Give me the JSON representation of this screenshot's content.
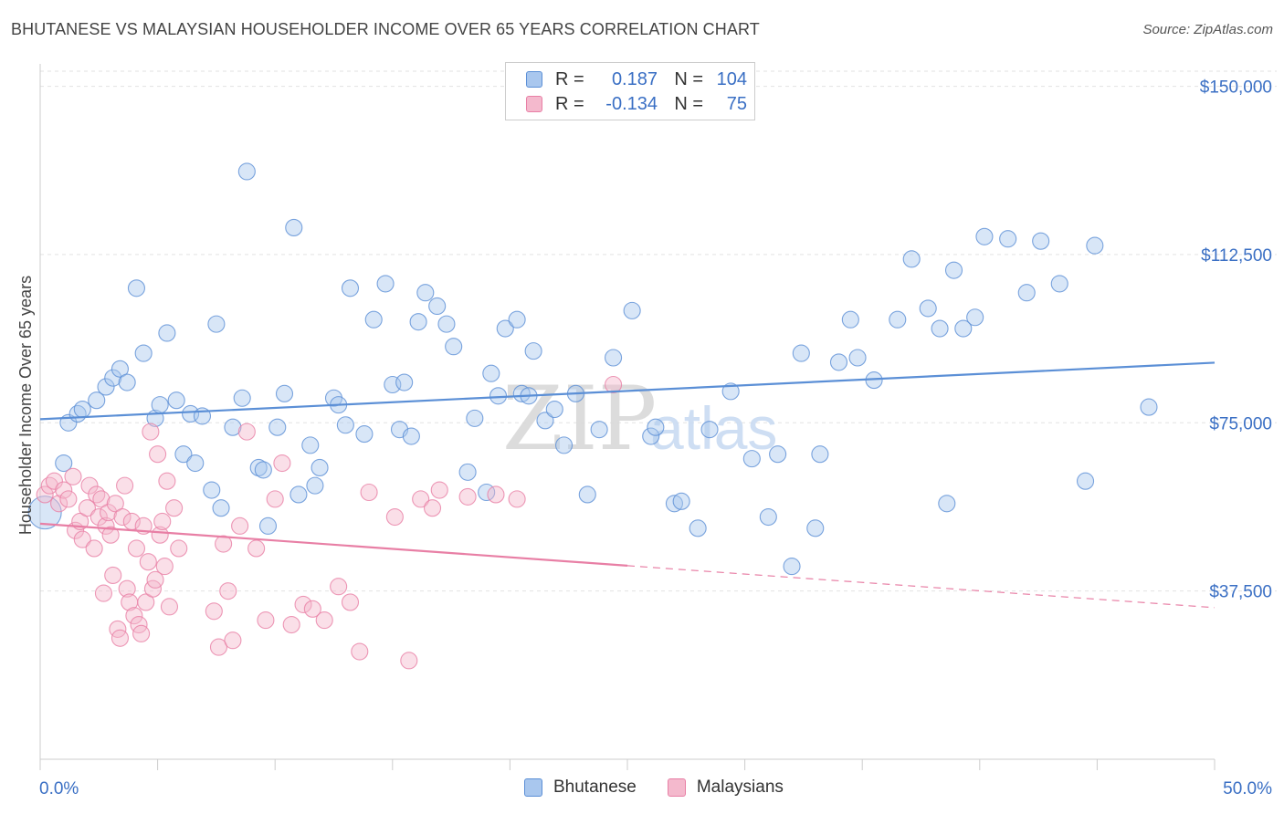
{
  "header": {
    "title": "BHUTANESE VS MALAYSIAN HOUSEHOLDER INCOME OVER 65 YEARS CORRELATION CHART",
    "source": "Source: ZipAtlas.com"
  },
  "watermark": {
    "zip": "ZIP",
    "atlas": "atlas"
  },
  "legend": {
    "rows": [
      {
        "r_label": "R =",
        "r_value": "0.187",
        "n_label": "N =",
        "n_value": "104",
        "color": "#5b8fd6"
      },
      {
        "r_label": "R =",
        "r_value": "-0.134",
        "n_label": "N =",
        "n_value": "75",
        "color": "#e87fa5"
      }
    ]
  },
  "bottom_legend": [
    "Bhutanese",
    "Malaysians"
  ],
  "chart_data": {
    "type": "scatter",
    "ylabel": "Householder Income Over 65 years",
    "x_min_label": "0.0%",
    "x_max_label": "50.0%",
    "xlim": [
      0,
      50
    ],
    "ylim": [
      0,
      155000
    ],
    "grid": true,
    "y_ticks": [
      {
        "value": 37500,
        "label": "$37,500"
      },
      {
        "value": 75000,
        "label": "$75,000"
      },
      {
        "value": 112500,
        "label": "$112,500"
      },
      {
        "value": 150000,
        "label": "$150,000"
      }
    ],
    "x_ticks": [
      0,
      5,
      10,
      15,
      20,
      25,
      30,
      35,
      40,
      45,
      50
    ],
    "series": [
      {
        "name": "Bhutanese",
        "color": "#5b8fd6",
        "fill": "#a9c7ee",
        "trend": {
          "x": [
            0,
            50
          ],
          "y": [
            75800,
            88400
          ],
          "dashed_from": null
        },
        "points": [
          [
            0.2,
            55000
          ],
          [
            1.0,
            66000
          ],
          [
            1.2,
            75000
          ],
          [
            1.6,
            77000
          ],
          [
            1.8,
            78000
          ],
          [
            2.4,
            80000
          ],
          [
            2.8,
            83000
          ],
          [
            3.1,
            85000
          ],
          [
            3.4,
            87000
          ],
          [
            3.7,
            84000
          ],
          [
            4.1,
            105000
          ],
          [
            4.4,
            90500
          ],
          [
            4.9,
            76000
          ],
          [
            5.1,
            79000
          ],
          [
            5.4,
            95000
          ],
          [
            5.8,
            80000
          ],
          [
            6.1,
            68000
          ],
          [
            6.4,
            77000
          ],
          [
            6.6,
            66000
          ],
          [
            6.9,
            76500
          ],
          [
            7.3,
            60000
          ],
          [
            7.5,
            97000
          ],
          [
            7.7,
            56000
          ],
          [
            8.2,
            74000
          ],
          [
            8.6,
            80500
          ],
          [
            8.8,
            131000
          ],
          [
            9.3,
            65000
          ],
          [
            9.5,
            64500
          ],
          [
            9.7,
            52000
          ],
          [
            10.1,
            74000
          ],
          [
            10.4,
            81500
          ],
          [
            10.8,
            118500
          ],
          [
            11.0,
            59000
          ],
          [
            11.5,
            70000
          ],
          [
            11.7,
            61000
          ],
          [
            11.9,
            65000
          ],
          [
            12.5,
            80500
          ],
          [
            12.7,
            79000
          ],
          [
            13.0,
            74500
          ],
          [
            13.2,
            105000
          ],
          [
            13.8,
            72500
          ],
          [
            14.2,
            98000
          ],
          [
            14.7,
            106000
          ],
          [
            15.0,
            83500
          ],
          [
            15.3,
            73500
          ],
          [
            15.5,
            84000
          ],
          [
            15.8,
            72000
          ],
          [
            16.1,
            97500
          ],
          [
            16.4,
            104000
          ],
          [
            16.9,
            101000
          ],
          [
            17.3,
            97000
          ],
          [
            17.6,
            92000
          ],
          [
            18.2,
            64000
          ],
          [
            18.5,
            76000
          ],
          [
            19.0,
            59500
          ],
          [
            19.2,
            86000
          ],
          [
            19.5,
            81000
          ],
          [
            19.8,
            96000
          ],
          [
            20.3,
            98000
          ],
          [
            20.5,
            81500
          ],
          [
            20.8,
            81000
          ],
          [
            21.0,
            91000
          ],
          [
            21.5,
            75500
          ],
          [
            21.9,
            78000
          ],
          [
            22.3,
            70000
          ],
          [
            22.8,
            81500
          ],
          [
            23.3,
            59000
          ],
          [
            23.8,
            73500
          ],
          [
            24.4,
            89500
          ],
          [
            25.2,
            100000
          ],
          [
            26.0,
            72000
          ],
          [
            26.2,
            74000
          ],
          [
            27.0,
            57000
          ],
          [
            27.3,
            57500
          ],
          [
            28.0,
            51500
          ],
          [
            28.5,
            73500
          ],
          [
            29.4,
            82000
          ],
          [
            30.3,
            67000
          ],
          [
            31.0,
            54000
          ],
          [
            31.4,
            68000
          ],
          [
            32.0,
            43000
          ],
          [
            32.4,
            90500
          ],
          [
            33.0,
            51500
          ],
          [
            33.2,
            68000
          ],
          [
            34.0,
            88500
          ],
          [
            34.5,
            98000
          ],
          [
            34.8,
            89500
          ],
          [
            35.5,
            84500
          ],
          [
            36.5,
            98000
          ],
          [
            37.1,
            111500
          ],
          [
            37.8,
            100500
          ],
          [
            38.3,
            96000
          ],
          [
            38.6,
            57000
          ],
          [
            38.9,
            109000
          ],
          [
            39.3,
            96000
          ],
          [
            39.8,
            98500
          ],
          [
            40.2,
            116500
          ],
          [
            41.2,
            116000
          ],
          [
            42.0,
            104000
          ],
          [
            42.6,
            115500
          ],
          [
            43.4,
            106000
          ],
          [
            44.5,
            62000
          ],
          [
            44.9,
            114500
          ],
          [
            47.2,
            78500
          ]
        ]
      },
      {
        "name": "Malaysians",
        "color": "#e87fa5",
        "fill": "#f4b9cd",
        "trend": {
          "x": [
            0,
            50
          ],
          "y": [
            52500,
            33800
          ],
          "dashed_from": 25
        },
        "points": [
          [
            0.2,
            59000
          ],
          [
            0.4,
            61000
          ],
          [
            0.6,
            62000
          ],
          [
            0.8,
            57000
          ],
          [
            1.0,
            60000
          ],
          [
            1.2,
            58000
          ],
          [
            1.4,
            63000
          ],
          [
            1.5,
            51000
          ],
          [
            1.7,
            53000
          ],
          [
            1.8,
            49000
          ],
          [
            2.0,
            56000
          ],
          [
            2.1,
            61000
          ],
          [
            2.3,
            47000
          ],
          [
            2.4,
            59000
          ],
          [
            2.5,
            54000
          ],
          [
            2.6,
            58000
          ],
          [
            2.7,
            37000
          ],
          [
            2.8,
            52000
          ],
          [
            2.9,
            55000
          ],
          [
            3.0,
            50000
          ],
          [
            3.1,
            41000
          ],
          [
            3.2,
            57000
          ],
          [
            3.3,
            29000
          ],
          [
            3.4,
            27000
          ],
          [
            3.5,
            54000
          ],
          [
            3.6,
            61000
          ],
          [
            3.7,
            38000
          ],
          [
            3.8,
            35000
          ],
          [
            3.9,
            53000
          ],
          [
            4.0,
            32000
          ],
          [
            4.1,
            47000
          ],
          [
            4.2,
            30000
          ],
          [
            4.3,
            28000
          ],
          [
            4.4,
            52000
          ],
          [
            4.5,
            35000
          ],
          [
            4.6,
            44000
          ],
          [
            4.7,
            73000
          ],
          [
            4.8,
            38000
          ],
          [
            4.9,
            40000
          ],
          [
            5.0,
            68000
          ],
          [
            5.1,
            50000
          ],
          [
            5.2,
            53000
          ],
          [
            5.3,
            43000
          ],
          [
            5.4,
            62000
          ],
          [
            5.5,
            34000
          ],
          [
            5.7,
            56000
          ],
          [
            5.9,
            47000
          ],
          [
            7.4,
            33000
          ],
          [
            7.6,
            25000
          ],
          [
            7.8,
            48000
          ],
          [
            8.0,
            37500
          ],
          [
            8.2,
            26500
          ],
          [
            8.5,
            52000
          ],
          [
            8.8,
            73000
          ],
          [
            9.2,
            47000
          ],
          [
            9.6,
            31000
          ],
          [
            10.0,
            58000
          ],
          [
            10.3,
            66000
          ],
          [
            10.7,
            30000
          ],
          [
            11.2,
            34500
          ],
          [
            11.6,
            33500
          ],
          [
            12.1,
            31000
          ],
          [
            12.7,
            38500
          ],
          [
            13.2,
            35000
          ],
          [
            13.6,
            24000
          ],
          [
            14.0,
            59500
          ],
          [
            15.1,
            54000
          ],
          [
            15.7,
            22000
          ],
          [
            16.2,
            58000
          ],
          [
            16.7,
            56000
          ],
          [
            17.0,
            60000
          ],
          [
            18.2,
            58500
          ],
          [
            19.4,
            59000
          ],
          [
            20.3,
            58000
          ],
          [
            24.4,
            83500
          ]
        ]
      }
    ]
  }
}
